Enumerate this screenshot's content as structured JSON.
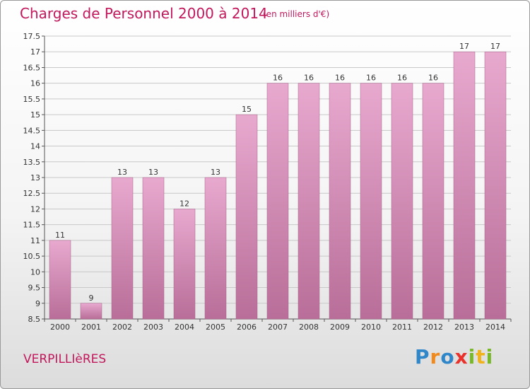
{
  "header": {
    "title": "Charges de Personnel 2000 à 2014",
    "subtitle": "(en milliers d'€)"
  },
  "commune": "VERPILLIèRES",
  "logo": {
    "text": "Proxiti",
    "letters": [
      {
        "ch": "P",
        "color": "#2f86c8"
      },
      {
        "ch": "r",
        "color": "#f08a1c"
      },
      {
        "ch": "o",
        "color": "#2f86c8"
      },
      {
        "ch": "x",
        "color": "#e8322b"
      },
      {
        "ch": "i",
        "color": "#79b928"
      },
      {
        "ch": "t",
        "color": "#f0b31c"
      },
      {
        "ch": "i",
        "color": "#79b928"
      }
    ]
  },
  "colors": {
    "bar_top": "#e8a9cf",
    "bar_bottom": "#b86e98",
    "title": "#c2185b",
    "grid": "#c8c8c8"
  },
  "chart_data": {
    "type": "bar",
    "title": "Charges de Personnel 2000 à 2014",
    "subtitle": "(en milliers d'€)",
    "categories": [
      "2000",
      "2001",
      "2002",
      "2003",
      "2004",
      "2005",
      "2006",
      "2007",
      "2008",
      "2009",
      "2010",
      "2011",
      "2012",
      "2013",
      "2014"
    ],
    "values": [
      11,
      9,
      13,
      13,
      12,
      13,
      15,
      16,
      16,
      16,
      16,
      16,
      16,
      17,
      17
    ],
    "data_labels": [
      "11",
      "9",
      "13",
      "13",
      "12",
      "13",
      "15",
      "16",
      "16",
      "16",
      "16",
      "16",
      "16",
      "17",
      "17"
    ],
    "ylim": [
      8.5,
      17.5
    ],
    "yticks": [
      "8.5",
      "9",
      "9.5",
      "10",
      "10.5",
      "11",
      "11.5",
      "12",
      "12.5",
      "13",
      "13.5",
      "14",
      "14.5",
      "15",
      "15.5",
      "16",
      "16.5",
      "17",
      "17.5"
    ],
    "grid": true,
    "xlabel": "",
    "ylabel": ""
  }
}
